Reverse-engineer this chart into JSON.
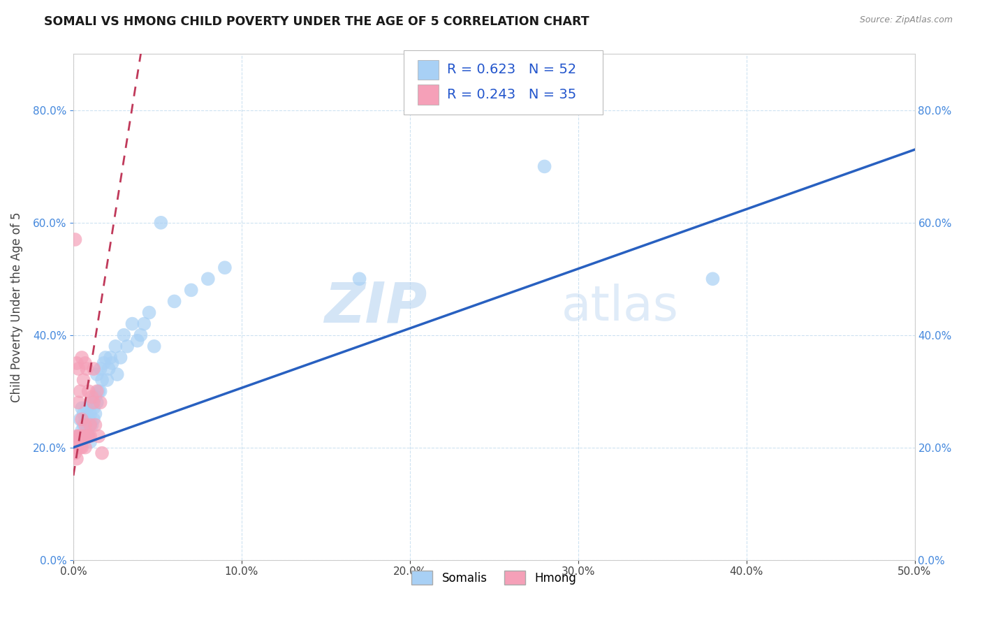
{
  "title": "SOMALI VS HMONG CHILD POVERTY UNDER THE AGE OF 5 CORRELATION CHART",
  "source_text": "Source: ZipAtlas.com",
  "ylabel": "Child Poverty Under the Age of 5",
  "xlim": [
    0,
    0.5
  ],
  "ylim": [
    0,
    0.9
  ],
  "xtick_vals": [
    0,
    0.1,
    0.2,
    0.3,
    0.4,
    0.5
  ],
  "ytick_vals": [
    0,
    0.2,
    0.4,
    0.6,
    0.8
  ],
  "somali_color": "#a8d0f5",
  "hmong_color": "#f5a0b8",
  "trend_somali_color": "#2860c0",
  "trend_hmong_color": "#c0395a",
  "legend_somali_label": "Somalis",
  "legend_hmong_label": "Hmong",
  "R_somali": 0.623,
  "N_somali": 52,
  "R_hmong": 0.243,
  "N_hmong": 35,
  "watermark_zip": "ZIP",
  "watermark_atlas": "atlas",
  "somali_x": [
    0.003,
    0.004,
    0.005,
    0.005,
    0.006,
    0.006,
    0.007,
    0.007,
    0.008,
    0.008,
    0.009,
    0.009,
    0.01,
    0.01,
    0.01,
    0.011,
    0.011,
    0.012,
    0.012,
    0.013,
    0.013,
    0.014,
    0.014,
    0.015,
    0.016,
    0.016,
    0.017,
    0.018,
    0.019,
    0.02,
    0.021,
    0.022,
    0.023,
    0.025,
    0.026,
    0.028,
    0.03,
    0.032,
    0.035,
    0.038,
    0.04,
    0.042,
    0.045,
    0.048,
    0.052,
    0.06,
    0.07,
    0.08,
    0.09,
    0.17,
    0.28,
    0.38
  ],
  "somali_y": [
    0.22,
    0.25,
    0.23,
    0.27,
    0.24,
    0.26,
    0.22,
    0.25,
    0.23,
    0.27,
    0.25,
    0.22,
    0.26,
    0.24,
    0.21,
    0.28,
    0.24,
    0.27,
    0.25,
    0.29,
    0.26,
    0.33,
    0.28,
    0.3,
    0.34,
    0.3,
    0.32,
    0.35,
    0.36,
    0.32,
    0.34,
    0.36,
    0.35,
    0.38,
    0.33,
    0.36,
    0.4,
    0.38,
    0.42,
    0.39,
    0.4,
    0.42,
    0.44,
    0.38,
    0.6,
    0.46,
    0.48,
    0.5,
    0.52,
    0.5,
    0.7,
    0.5
  ],
  "hmong_x": [
    0.001,
    0.001,
    0.001,
    0.002,
    0.002,
    0.002,
    0.002,
    0.003,
    0.003,
    0.003,
    0.004,
    0.004,
    0.004,
    0.005,
    0.005,
    0.005,
    0.006,
    0.006,
    0.007,
    0.007,
    0.007,
    0.008,
    0.008,
    0.009,
    0.009,
    0.01,
    0.01,
    0.011,
    0.012,
    0.012,
    0.013,
    0.014,
    0.015,
    0.016,
    0.017
  ],
  "hmong_y": [
    0.57,
    0.2,
    0.19,
    0.35,
    0.22,
    0.2,
    0.18,
    0.34,
    0.28,
    0.22,
    0.3,
    0.22,
    0.2,
    0.36,
    0.25,
    0.2,
    0.32,
    0.22,
    0.35,
    0.24,
    0.2,
    0.34,
    0.22,
    0.3,
    0.22,
    0.24,
    0.22,
    0.29,
    0.34,
    0.28,
    0.24,
    0.3,
    0.22,
    0.28,
    0.19
  ],
  "hmong_trend_x0": 0.0,
  "hmong_trend_x1": 0.042,
  "somali_trend_x0": 0.0,
  "somali_trend_x1": 0.5
}
